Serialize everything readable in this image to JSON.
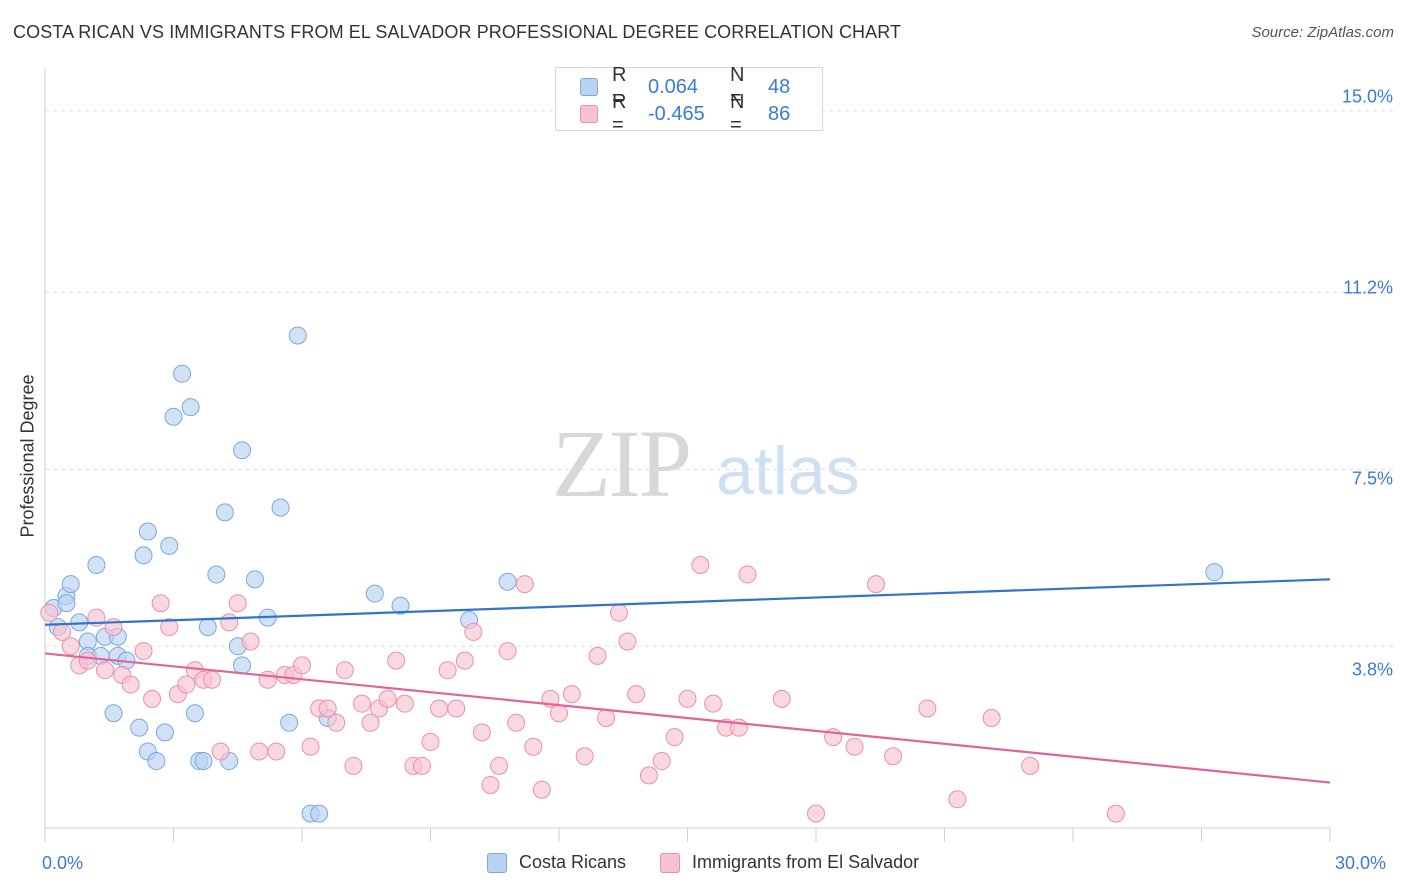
{
  "title": "COSTA RICAN VS IMMIGRANTS FROM EL SALVADOR PROFESSIONAL DEGREE CORRELATION CHART",
  "source": "Source: ZipAtlas.com",
  "watermark": {
    "zip": "ZIP",
    "atlas": "atlas"
  },
  "legend": {
    "rows": [
      {
        "r_label": "R =",
        "r_value": "0.064",
        "n_label": "N =",
        "n_value": "48"
      },
      {
        "r_label": "R =",
        "r_value": "-0.465",
        "n_label": "N =",
        "n_value": "86"
      }
    ]
  },
  "colors": {
    "blue_fill": "#b9d2f1",
    "blue_stroke": "#7aa8e0",
    "blue_line": "#2f74cf",
    "pink_fill": "#f7c3d2",
    "pink_stroke": "#eb8fab",
    "pink_line": "#e0649a",
    "grid": "#dedede",
    "axis_text": "#3a7bd5"
  },
  "chart_data": {
    "type": "scatter",
    "title": "COSTA RICAN VS IMMIGRANTS FROM EL SALVADOR PROFESSIONAL DEGREE CORRELATION CHART",
    "xlabel": "",
    "ylabel": "Professional Degree",
    "xlim": [
      0,
      30
    ],
    "ylim": [
      0,
      15.6
    ],
    "x_tick_labels": [
      "0.0%",
      "30.0%"
    ],
    "y_ticks": [
      3.8,
      7.5,
      11.2,
      15.0
    ],
    "y_tick_labels": [
      "3.8%",
      "7.5%",
      "11.2%",
      "15.0%"
    ],
    "grid": "horizontal dashed",
    "legend_position": "top-center",
    "series": [
      {
        "name": "Costa Ricans",
        "r": 0.064,
        "n": 48,
        "trend": [
          [
            0,
            4.25
          ],
          [
            30,
            5.2
          ]
        ],
        "points": [
          [
            0.2,
            4.6
          ],
          [
            0.5,
            4.85
          ],
          [
            0.6,
            5.1
          ],
          [
            0.5,
            4.7
          ],
          [
            0.3,
            4.2
          ],
          [
            1.2,
            5.5
          ],
          [
            0.8,
            4.3
          ],
          [
            1.0,
            3.9
          ],
          [
            1.4,
            4.0
          ],
          [
            1.7,
            4.0
          ],
          [
            1.0,
            3.6
          ],
          [
            1.3,
            3.6
          ],
          [
            1.7,
            3.6
          ],
          [
            1.9,
            3.5
          ],
          [
            1.6,
            2.4
          ],
          [
            2.2,
            2.1
          ],
          [
            2.4,
            1.6
          ],
          [
            2.6,
            1.4
          ],
          [
            2.8,
            2.0
          ],
          [
            2.3,
            5.7
          ],
          [
            2.4,
            6.2
          ],
          [
            2.9,
            5.9
          ],
          [
            3.0,
            8.6
          ],
          [
            3.2,
            9.5
          ],
          [
            3.4,
            8.8
          ],
          [
            3.5,
            2.4
          ],
          [
            3.6,
            1.4
          ],
          [
            3.7,
            1.4
          ],
          [
            3.8,
            4.2
          ],
          [
            4.0,
            5.3
          ],
          [
            4.2,
            6.6
          ],
          [
            4.3,
            1.4
          ],
          [
            4.5,
            3.8
          ],
          [
            4.6,
            3.4
          ],
          [
            4.6,
            7.9
          ],
          [
            4.9,
            5.2
          ],
          [
            5.2,
            4.4
          ],
          [
            5.5,
            6.7
          ],
          [
            5.7,
            2.2
          ],
          [
            5.9,
            10.3
          ],
          [
            6.2,
            0.3
          ],
          [
            6.4,
            0.3
          ],
          [
            6.6,
            2.3
          ],
          [
            7.7,
            4.9
          ],
          [
            8.3,
            4.65
          ],
          [
            9.9,
            4.35
          ],
          [
            10.8,
            5.15
          ],
          [
            27.3,
            5.35
          ]
        ]
      },
      {
        "name": "Immigrants from El Salvador",
        "r": -0.465,
        "n": 86,
        "trend": [
          [
            0,
            3.65
          ],
          [
            30,
            0.95
          ]
        ],
        "points": [
          [
            0.1,
            4.5
          ],
          [
            0.4,
            4.1
          ],
          [
            0.6,
            3.8
          ],
          [
            0.8,
            3.4
          ],
          [
            1.0,
            3.5
          ],
          [
            1.2,
            4.4
          ],
          [
            1.4,
            3.3
          ],
          [
            1.6,
            4.2
          ],
          [
            1.8,
            3.2
          ],
          [
            2.0,
            3.0
          ],
          [
            2.3,
            3.7
          ],
          [
            2.5,
            2.7
          ],
          [
            2.7,
            4.7
          ],
          [
            2.9,
            4.2
          ],
          [
            3.1,
            2.8
          ],
          [
            3.3,
            3.0
          ],
          [
            3.5,
            3.3
          ],
          [
            3.7,
            3.1
          ],
          [
            3.9,
            3.1
          ],
          [
            4.1,
            1.6
          ],
          [
            4.3,
            4.3
          ],
          [
            4.5,
            4.7
          ],
          [
            4.8,
            3.9
          ],
          [
            5.0,
            1.6
          ],
          [
            5.2,
            3.1
          ],
          [
            5.4,
            1.6
          ],
          [
            5.6,
            3.2
          ],
          [
            5.8,
            3.2
          ],
          [
            6.0,
            3.4
          ],
          [
            6.2,
            1.7
          ],
          [
            6.4,
            2.5
          ],
          [
            6.6,
            2.5
          ],
          [
            6.8,
            2.2
          ],
          [
            7.0,
            3.3
          ],
          [
            7.2,
            1.3
          ],
          [
            7.4,
            2.6
          ],
          [
            7.6,
            2.2
          ],
          [
            7.8,
            2.5
          ],
          [
            8.0,
            2.7
          ],
          [
            8.2,
            3.5
          ],
          [
            8.4,
            2.6
          ],
          [
            8.6,
            1.3
          ],
          [
            8.8,
            1.3
          ],
          [
            9.0,
            1.8
          ],
          [
            9.2,
            2.5
          ],
          [
            9.4,
            3.3
          ],
          [
            9.6,
            2.5
          ],
          [
            9.8,
            3.5
          ],
          [
            10.0,
            4.1
          ],
          [
            10.2,
            2.0
          ],
          [
            10.4,
            0.9
          ],
          [
            10.6,
            1.3
          ],
          [
            10.8,
            3.7
          ],
          [
            11.0,
            2.2
          ],
          [
            11.2,
            5.1
          ],
          [
            11.4,
            1.7
          ],
          [
            11.6,
            0.8
          ],
          [
            11.8,
            2.7
          ],
          [
            12.0,
            2.4
          ],
          [
            12.3,
            2.8
          ],
          [
            12.6,
            1.5
          ],
          [
            12.9,
            3.6
          ],
          [
            13.1,
            2.3
          ],
          [
            13.4,
            4.5
          ],
          [
            13.6,
            3.9
          ],
          [
            13.8,
            2.8
          ],
          [
            14.1,
            1.1
          ],
          [
            14.4,
            1.4
          ],
          [
            14.7,
            1.9
          ],
          [
            15.0,
            2.7
          ],
          [
            15.3,
            5.5
          ],
          [
            15.6,
            2.6
          ],
          [
            15.9,
            2.1
          ],
          [
            16.2,
            2.1
          ],
          [
            16.4,
            5.3
          ],
          [
            17.2,
            2.7
          ],
          [
            18.0,
            0.3
          ],
          [
            18.4,
            1.9
          ],
          [
            18.9,
            1.7
          ],
          [
            19.4,
            5.1
          ],
          [
            19.8,
            1.5
          ],
          [
            20.6,
            2.5
          ],
          [
            21.3,
            0.6
          ],
          [
            22.1,
            2.3
          ],
          [
            23.0,
            1.3
          ],
          [
            25.0,
            0.3
          ]
        ]
      }
    ]
  }
}
